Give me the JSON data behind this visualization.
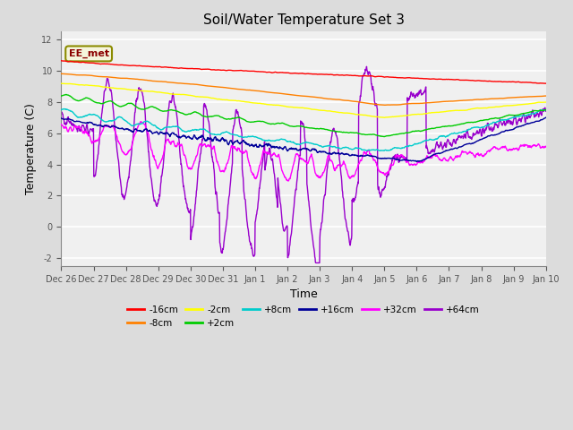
{
  "title": "Soil/Water Temperature Set 3",
  "xlabel": "Time",
  "ylabel": "Temperature (C)",
  "ylim": [
    -2.5,
    12.5
  ],
  "yticks": [
    -2,
    0,
    2,
    4,
    6,
    8,
    10,
    12
  ],
  "x_labels": [
    "Dec 26",
    "Dec 27",
    "Dec 28",
    "Dec 29",
    "Dec 30",
    "Dec 31",
    "Jan 1",
    "Jan 2",
    "Jan 3",
    "Jan 4",
    "Jan 5",
    "Jan 6",
    "Jan 7",
    "Jan 8",
    "Jan 9",
    "Jan 10"
  ],
  "annotation_text": "EE_met",
  "series_colors": {
    "-16cm": "#FF0000",
    "-8cm": "#FF8000",
    "-2cm": "#FFFF00",
    "+2cm": "#00CC00",
    "+8cm": "#00CCCC",
    "+16cm": "#000099",
    "+32cm": "#FF00FF",
    "+64cm": "#9900CC"
  },
  "background_color": "#DCDCDC",
  "plot_bg_color": "#F0F0F0",
  "grid_color": "#FFFFFF"
}
